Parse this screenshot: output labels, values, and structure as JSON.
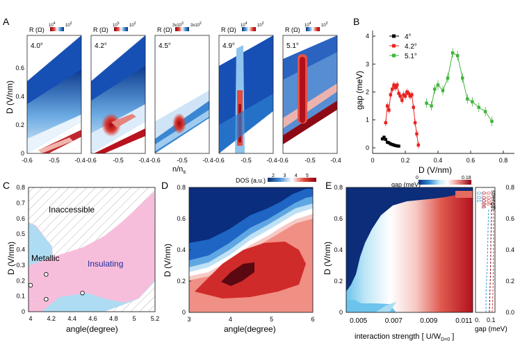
{
  "panels": {
    "A": {
      "letter": "A",
      "ylabel": "D (V/nm)",
      "xlabel": "n/n",
      "xlabel_sub": "s",
      "yticks": [
        "0",
        "0.2",
        "0.4",
        "0.6"
      ],
      "xticks": [
        "-0.6",
        "-0.5",
        "-0.4"
      ],
      "maps": [
        {
          "angle": "4.0°",
          "cb_label": "R (Ω)",
          "cb_low": "10",
          "cb_low_exp": "4",
          "cb_high": "10",
          "cb_high_exp": "2"
        },
        {
          "angle": "4.2°",
          "cb_label": "R (Ω)",
          "cb_low": "10",
          "cb_low_exp": "5",
          "cb_high": "10",
          "cb_high_exp": "2"
        },
        {
          "angle": "4.5°",
          "cb_label": "R (Ω)",
          "cb_low": "3x10",
          "cb_low_exp": "3",
          "cb_high": "3x10",
          "cb_high_exp": "2"
        },
        {
          "angle": "4.9°",
          "cb_label": "R (Ω)",
          "cb_low": "10",
          "cb_low_exp": "4",
          "cb_high": "10",
          "cb_high_exp": "2"
        },
        {
          "angle": "5.1°",
          "cb_label": "R (Ω)",
          "cb_low": "10",
          "cb_low_exp": "4",
          "cb_high": "10",
          "cb_high_exp": "2"
        }
      ]
    },
    "B": {
      "letter": "B",
      "ylabel": "gap (meV)",
      "xlabel": "D (V/nm)",
      "xticks": [
        "0",
        "0.2",
        "0.4",
        "0.6",
        "0.8"
      ],
      "yticks": [
        "0",
        "1",
        "2",
        "3",
        "4"
      ]
    },
    "C": {
      "letter": "C",
      "ylabel": "D (V/nm)",
      "xlabel": "angle(degree)",
      "xticks": [
        "4",
        "4.2",
        "4.4",
        "4.6",
        "4.8",
        "5",
        "5.2"
      ],
      "yticks": [
        "0",
        "0.1",
        "0.2",
        "0.3",
        "0.4",
        "0.5",
        "0.6",
        "0.7",
        "0.8"
      ],
      "label_inaccessible": "Inaccessible",
      "label_metallic": "Metallic",
      "label_insulating": "Insulating"
    },
    "D": {
      "letter": "D",
      "ylabel": "D (V/nm)",
      "xlabel": "angle(degree)",
      "xticks": [
        "3",
        "4",
        "5",
        "6"
      ],
      "yticks": [
        "0",
        "0.2",
        "0.4",
        "0.6",
        "0.8"
      ],
      "cb_label": "DOS (a.u.)",
      "cb_ticks": [
        "2",
        "3",
        "4",
        "5"
      ]
    },
    "E": {
      "letter": "E",
      "ylabel": "D (V/nm)",
      "xlabel": "interaction strength [ U/W",
      "xlabel_sub": "D=0",
      "xlabel_end": " ]",
      "xticks": [
        "0.005",
        "0.007",
        "0.009",
        "0.011"
      ],
      "yticks": [
        "0",
        "0.2",
        "0.4",
        "0.6",
        "0.8"
      ],
      "cb_label": "gap (meV)",
      "cb_ticks": [
        "0",
        "0.18"
      ],
      "side_yticks": [
        "0.0",
        "0.2",
        "0.4",
        "0.6",
        "0.8"
      ],
      "side_xticks": [
        "0.",
        "0.1"
      ],
      "side_xlabel": "gap (meV)",
      "side_legend_title": "strength",
      "side_legend": [
        "0.006",
        "0.0086",
        "0.01"
      ]
    }
  },
  "colors": {
    "metallic": "#aedcf2",
    "insulating": "#f7bedc",
    "series_4": "#000000",
    "series_42": "#e8231f",
    "series_51": "#3fb43a",
    "cmap_blue": "#08306b",
    "cmap_red": "#8b0012"
  },
  "chart_data": [
    {
      "panel": "A",
      "type": "heatmap",
      "title": "",
      "xlabel": "n/ns",
      "ylabel": "D (V/nm)",
      "xlim": [
        -0.6,
        -0.4
      ],
      "ylim": [
        0,
        0.7
      ],
      "maps": [
        "4.0°",
        "4.2°",
        "4.5°",
        "4.9°",
        "5.1°"
      ]
    },
    {
      "panel": "B",
      "type": "scatter",
      "xlabel": "D (V/nm)",
      "ylabel": "gap (meV)",
      "xlim": [
        0,
        0.8
      ],
      "ylim": [
        -0.2,
        4.2
      ],
      "series": [
        {
          "name": "4°",
          "x": [
            0.06,
            0.07,
            0.08,
            0.09,
            0.1,
            0.11,
            0.12,
            0.13,
            0.14,
            0.15,
            0.16
          ],
          "values": [
            0.32,
            0.38,
            0.3,
            0.2,
            0.18,
            0.14,
            0.12,
            0.1,
            0.08,
            0.07,
            0.06
          ]
        },
        {
          "name": "4.2°",
          "x": [
            0.08,
            0.09,
            0.1,
            0.11,
            0.12,
            0.13,
            0.14,
            0.15,
            0.16,
            0.17,
            0.18,
            0.19,
            0.2,
            0.21,
            0.22,
            0.23,
            0.24,
            0.25,
            0.26,
            0.27,
            0.28
          ],
          "values": [
            0.9,
            1.5,
            1.35,
            1.9,
            2.1,
            2.25,
            2.15,
            2.25,
            1.95,
            1.85,
            1.7,
            1.9,
            1.85,
            2.0,
            1.95,
            1.85,
            1.9,
            1.45,
            0.9,
            0.5,
            0.1
          ]
        },
        {
          "name": "5.1°",
          "x": [
            0.33,
            0.36,
            0.38,
            0.4,
            0.43,
            0.46,
            0.49,
            0.52,
            0.55,
            0.58,
            0.61,
            0.65,
            0.69,
            0.73
          ],
          "values": [
            1.6,
            1.5,
            2.1,
            2.25,
            2.05,
            2.5,
            3.4,
            3.3,
            2.5,
            1.75,
            1.65,
            1.45,
            1.3,
            0.95
          ]
        }
      ]
    },
    {
      "panel": "C",
      "type": "area",
      "xlabel": "angle(degree)",
      "ylabel": "D (V/nm)",
      "xlim": [
        3.98,
        5.2
      ],
      "ylim": [
        0,
        0.8
      ],
      "regions": [
        "Inaccessible",
        "Metallic",
        "Insulating"
      ],
      "points": [
        {
          "x": 4.0,
          "y": 0.17
        },
        {
          "x": 4.15,
          "y": 0.24
        },
        {
          "x": 4.15,
          "y": 0.08
        },
        {
          "x": 4.5,
          "y": 0.12
        }
      ]
    },
    {
      "panel": "D",
      "type": "heatmap",
      "xlabel": "angle(degree)",
      "ylabel": "D (V/nm)",
      "xlim": [
        3,
        6
      ],
      "ylim": [
        0,
        0.8
      ],
      "colorbar": {
        "label": "DOS (a.u.)",
        "range": [
          1.5,
          5.8
        ]
      }
    },
    {
      "panel": "E",
      "type": "heatmap",
      "xlabel": "interaction strength [ U/W_D=0 ]",
      "ylabel": "D (V/nm)",
      "xlim": [
        0.0043,
        0.0115
      ],
      "ylim": [
        0,
        0.8
      ],
      "colorbar": {
        "label": "gap (meV)",
        "range": [
          0,
          0.18
        ]
      },
      "side_series": [
        {
          "name": "0.006",
          "color": "#e0303a"
        },
        {
          "name": "0.0086",
          "color": "#8b0012"
        },
        {
          "name": "0.01",
          "color": "#2a9fd8"
        }
      ]
    }
  ]
}
